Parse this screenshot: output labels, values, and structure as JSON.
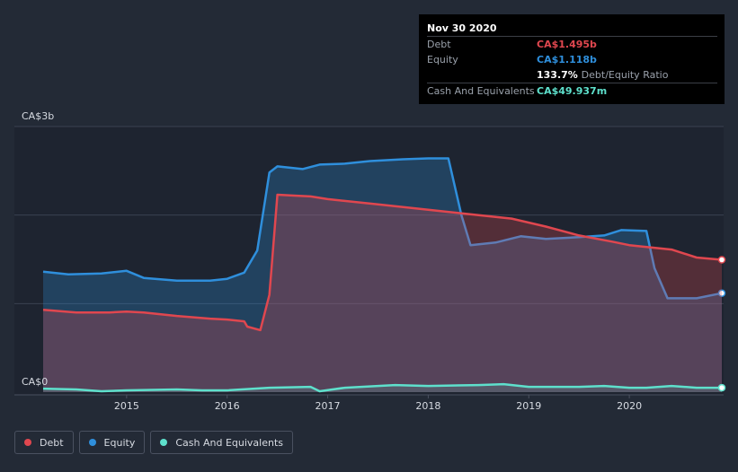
{
  "tooltip": {
    "date": "Nov 30 2020",
    "debt_label": "Debt",
    "debt_value": "CA$1.495b",
    "equity_label": "Equity",
    "equity_value": "CA$1.118b",
    "ratio_value": "133.7%",
    "ratio_label": "Debt/Equity Ratio",
    "cash_label": "Cash And Equivalents",
    "cash_value": "CA$49.937m"
  },
  "legend": [
    {
      "label": "Debt",
      "color": "#e0474f"
    },
    {
      "label": "Equity",
      "color": "#2f8fdc"
    },
    {
      "label": "Cash And Equivalents",
      "color": "#5ee0cc"
    }
  ],
  "chart_data": {
    "type": "area",
    "x_unit": "year",
    "ylim": [
      0,
      3.0
    ],
    "y_tick_labels": [
      {
        "value": 3.0,
        "label": "CA$3b"
      },
      {
        "value": 0,
        "label": "CA$0"
      }
    ],
    "x_ticks": [
      2015,
      2016,
      2017,
      2018,
      2019,
      2020
    ],
    "grid": true,
    "legend_position": "bottom-left",
    "series": [
      {
        "name": "Debt",
        "color": "#e0474f",
        "points": [
          [
            2014.17,
            0.93
          ],
          [
            2014.5,
            0.9
          ],
          [
            2014.83,
            0.9
          ],
          [
            2015.0,
            0.91
          ],
          [
            2015.17,
            0.9
          ],
          [
            2015.5,
            0.86
          ],
          [
            2015.83,
            0.83
          ],
          [
            2016.0,
            0.82
          ],
          [
            2016.17,
            0.8
          ],
          [
            2016.2,
            0.74
          ],
          [
            2016.33,
            0.7
          ],
          [
            2016.42,
            1.1
          ],
          [
            2016.5,
            2.23
          ],
          [
            2016.67,
            2.22
          ],
          [
            2016.83,
            2.21
          ],
          [
            2017.0,
            2.18
          ],
          [
            2017.5,
            2.12
          ],
          [
            2018.0,
            2.06
          ],
          [
            2018.5,
            2.0
          ],
          [
            2018.83,
            1.96
          ],
          [
            2019.17,
            1.87
          ],
          [
            2019.5,
            1.77
          ],
          [
            2019.83,
            1.7
          ],
          [
            2020.0,
            1.66
          ],
          [
            2020.42,
            1.61
          ],
          [
            2020.67,
            1.52
          ],
          [
            2020.92,
            1.495
          ]
        ]
      },
      {
        "name": "Equity",
        "color": "#2f8fdc",
        "points": [
          [
            2014.17,
            1.36
          ],
          [
            2014.42,
            1.33
          ],
          [
            2014.75,
            1.34
          ],
          [
            2015.0,
            1.37
          ],
          [
            2015.17,
            1.29
          ],
          [
            2015.5,
            1.26
          ],
          [
            2015.83,
            1.26
          ],
          [
            2016.0,
            1.28
          ],
          [
            2016.17,
            1.35
          ],
          [
            2016.3,
            1.6
          ],
          [
            2016.42,
            2.48
          ],
          [
            2016.5,
            2.55
          ],
          [
            2016.75,
            2.52
          ],
          [
            2016.92,
            2.57
          ],
          [
            2017.17,
            2.58
          ],
          [
            2017.42,
            2.61
          ],
          [
            2017.75,
            2.63
          ],
          [
            2018.0,
            2.64
          ],
          [
            2018.2,
            2.64
          ],
          [
            2018.33,
            2.0
          ],
          [
            2018.42,
            1.66
          ],
          [
            2018.67,
            1.69
          ],
          [
            2018.92,
            1.76
          ],
          [
            2019.17,
            1.73
          ],
          [
            2019.5,
            1.75
          ],
          [
            2019.75,
            1.77
          ],
          [
            2019.92,
            1.83
          ],
          [
            2020.17,
            1.82
          ],
          [
            2020.25,
            1.4
          ],
          [
            2020.38,
            1.06
          ],
          [
            2020.67,
            1.06
          ],
          [
            2020.92,
            1.118
          ]
        ]
      },
      {
        "name": "Cash And Equivalents",
        "color": "#5ee0cc",
        "points": [
          [
            2014.17,
            0.04
          ],
          [
            2014.5,
            0.03
          ],
          [
            2014.75,
            0.01
          ],
          [
            2015.0,
            0.02
          ],
          [
            2015.5,
            0.03
          ],
          [
            2015.75,
            0.02
          ],
          [
            2016.0,
            0.02
          ],
          [
            2016.42,
            0.05
          ],
          [
            2016.83,
            0.06
          ],
          [
            2016.92,
            0.01
          ],
          [
            2017.17,
            0.05
          ],
          [
            2017.5,
            0.07
          ],
          [
            2017.67,
            0.08
          ],
          [
            2018.0,
            0.07
          ],
          [
            2018.5,
            0.08
          ],
          [
            2018.75,
            0.09
          ],
          [
            2019.0,
            0.06
          ],
          [
            2019.5,
            0.06
          ],
          [
            2019.75,
            0.07
          ],
          [
            2020.0,
            0.05
          ],
          [
            2020.17,
            0.05
          ],
          [
            2020.42,
            0.07
          ],
          [
            2020.67,
            0.05
          ],
          [
            2020.92,
            0.05
          ]
        ]
      }
    ]
  }
}
